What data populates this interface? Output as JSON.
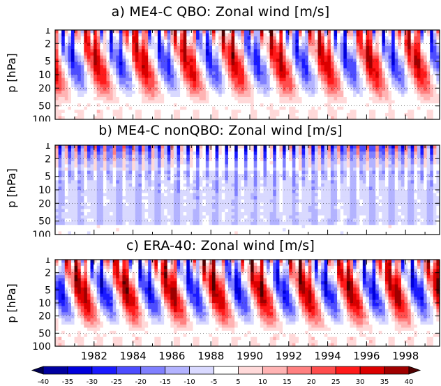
{
  "panels": [
    {
      "id": "a",
      "title": "a) ME4-C QBO: Zonal wind [m/s]",
      "ylabel": "p [hPa]",
      "regime": "qbo",
      "seed": 11,
      "show_x_ticks": false
    },
    {
      "id": "b",
      "title": "b) ME4-C nonQBO: Zonal wind [m/s]",
      "ylabel": "p [hPa]",
      "regime": "noqbo",
      "seed": 23,
      "show_x_ticks": false
    },
    {
      "id": "c",
      "title": "c) ERA-40: Zonal wind [m/s]",
      "ylabel": "p [hPa]",
      "regime": "era",
      "seed": 37,
      "show_x_ticks": true
    }
  ],
  "colorbar": {
    "levels": [
      -40,
      -35,
      -30,
      -25,
      -20,
      -15,
      -10,
      -5,
      5,
      10,
      15,
      20,
      25,
      30,
      35,
      40
    ],
    "colors": [
      "#000050",
      "#0000a0",
      "#0000dc",
      "#1a1aff",
      "#4d4dff",
      "#8080ff",
      "#b3b3ff",
      "#d9d9ff",
      "#ffffff",
      "#ffd9d9",
      "#ffb3b3",
      "#ff8080",
      "#ff4d4d",
      "#ff1a1a",
      "#dc0000",
      "#a00000",
      "#500000"
    ]
  },
  "chart_data": [
    {
      "type": "heatmap",
      "title": "a) ME4-C QBO: Zonal wind [m/s]",
      "xlabel": "",
      "ylabel": "p [hPa]",
      "x_range": [
        "1980",
        "1999"
      ],
      "y_scale": "log",
      "y_range_hPa": [
        100,
        1
      ],
      "y_ticks": [
        1,
        2,
        5,
        10,
        20,
        50,
        100
      ],
      "colorbar_levels_m_s": [
        -40,
        -35,
        -30,
        -25,
        -20,
        -15,
        -10,
        -5,
        5,
        10,
        15,
        20,
        25,
        30,
        35,
        40
      ],
      "pattern": "quasi-biennial oscillation: alternating easterly (blue) and westerly (red) wind regimes descending from 1 hPa to ~70 hPa with period ~28 months"
    },
    {
      "type": "heatmap",
      "title": "b) ME4-C nonQBO: Zonal wind [m/s]",
      "xlabel": "",
      "ylabel": "p [hPa]",
      "x_range": [
        "1980",
        "1999"
      ],
      "y_scale": "log",
      "y_range_hPa": [
        100,
        1
      ],
      "y_ticks": [
        1,
        2,
        5,
        10,
        20,
        50,
        100
      ],
      "colorbar_levels_m_s": [
        -40,
        -35,
        -30,
        -25,
        -20,
        -15,
        -10,
        -5,
        5,
        10,
        15,
        20,
        25,
        30,
        35,
        40
      ],
      "pattern": "no QBO: semiannual oscillation above ~5 hPa, weak easterlies below"
    },
    {
      "type": "heatmap",
      "title": "c) ERA-40: Zonal wind [m/s]",
      "xlabel": "",
      "ylabel": "p [hPa]",
      "x_range": [
        "1980",
        "1999"
      ],
      "x_ticks": [
        "1982",
        "1984",
        "1986",
        "1988",
        "1990",
        "1992",
        "1994",
        "1996",
        "1998"
      ],
      "y_scale": "log",
      "y_range_hPa": [
        100,
        1
      ],
      "y_ticks": [
        1,
        2,
        5,
        10,
        20,
        50,
        100
      ],
      "colorbar_levels_m_s": [
        -40,
        -35,
        -30,
        -25,
        -20,
        -15,
        -10,
        -5,
        5,
        10,
        15,
        20,
        25,
        30,
        35,
        40
      ],
      "pattern": "observed QBO: descending easterly/westerly regimes with irregular period ~28 months"
    }
  ]
}
